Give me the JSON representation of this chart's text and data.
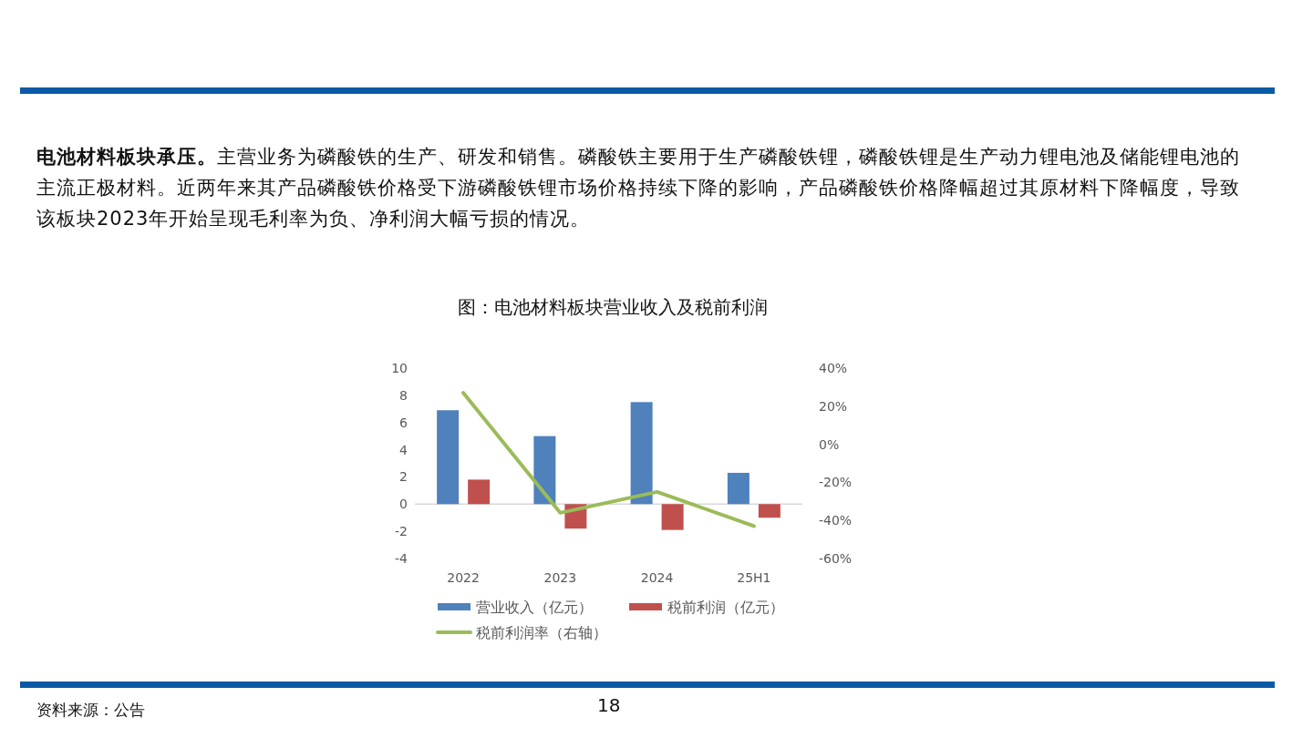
{
  "chart_data": {
    "type": "bar",
    "title": "图：电池材料板块营业收入及税前利润",
    "annotations": [
      "电池材料板块承压。",
      "主营业务为磷酸铁的生产、研发和销售。磷酸铁主要用于生产磷酸铁锂，磷酸铁锂是生产动力锂电池及储能锂电池的主流正极材料。近两年来其产品磷酸铁价格受下游磷酸铁锂市场价格持续下降的影响，产品磷酸铁价格降幅超过其原材料下降幅度，导致该板块2023年开始呈现毛利率为负、净利润大幅亏损的情况。",
      "资料来源：公告",
      "18"
    ],
    "categories": [
      "2022",
      "2023",
      "2024",
      "25H1"
    ],
    "series": [
      {
        "name": "营业收入（亿元）",
        "color": "#4f81bd",
        "values": [
          6.9,
          5.0,
          7.5,
          2.3
        ]
      },
      {
        "name": "税前利润（亿元）",
        "color": "#c0504d",
        "values": [
          1.8,
          -1.8,
          -1.9,
          -1.0
        ]
      },
      {
        "name": "税前利润率（右轴）",
        "type": "line",
        "axis": "y2",
        "color": "#9bbb59",
        "values": [
          27,
          -36,
          -25,
          -43
        ]
      }
    ],
    "ylim": [
      -4,
      10
    ],
    "yticks": [
      -4,
      -2,
      0,
      2,
      4,
      6,
      8,
      10
    ],
    "y2lim": [
      -60,
      40
    ],
    "y2ticks": [
      {
        "value": -60,
        "label": "-60%"
      },
      {
        "value": -40,
        "label": "-40%"
      },
      {
        "value": -20,
        "label": "-20%"
      },
      {
        "value": 0,
        "label": "0%"
      },
      {
        "value": 20,
        "label": "20%"
      },
      {
        "value": 40,
        "label": "40%"
      }
    ],
    "legend": "bottom",
    "marker": "none"
  }
}
